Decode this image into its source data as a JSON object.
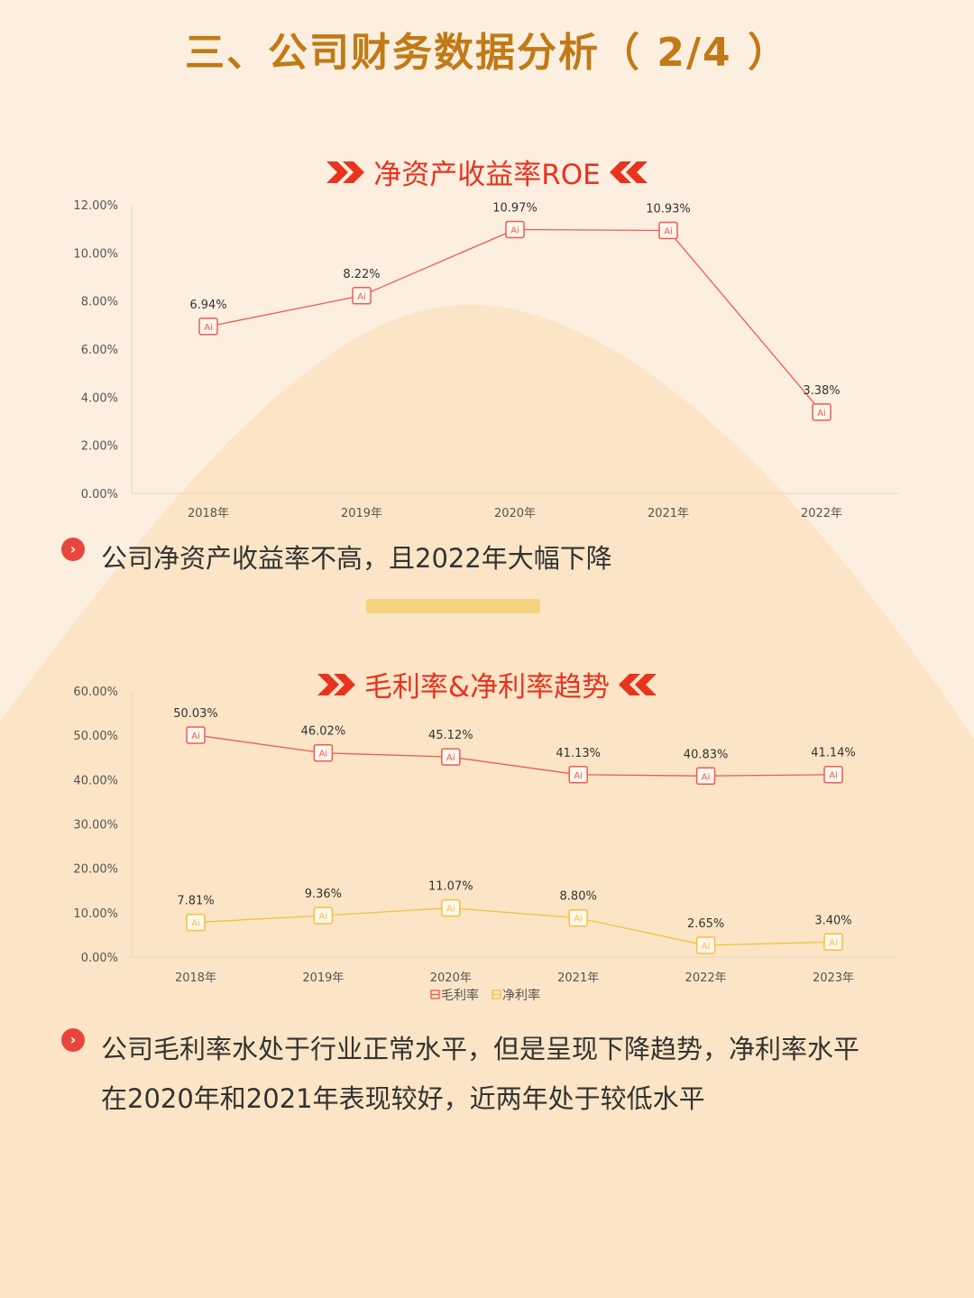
{
  "page_title": "三、公司财务数据分析（ 2/4 ）",
  "charts": [
    {
      "title": "净资产收益率ROE",
      "bullet": "公司净资产收益率不高，且2022年大幅下降"
    },
    {
      "title": "毛利率&净利率趋势",
      "bullet": "公司毛利率水处于行业正常水平，但是呈现下降趋势，净利率水平在2020年和2021年表现较好，近两年处于较低水平"
    }
  ],
  "chart_data": [
    {
      "type": "line",
      "categories": [
        "2018年",
        "2019年",
        "2020年",
        "2021年",
        "2022年"
      ],
      "series": [
        {
          "name": "",
          "values": [
            6.94,
            8.22,
            10.97,
            10.93,
            3.38
          ],
          "labels": [
            "6.94%",
            "8.22%",
            "10.97%",
            "10.93%",
            "3.38%"
          ],
          "color": "#ef5a50"
        }
      ],
      "yticks": [
        "0.00%",
        "2.00%",
        "4.00%",
        "6.00%",
        "8.00%",
        "10.00%",
        "12.00%"
      ],
      "ylim": [
        0,
        12
      ],
      "marker_text": "Ai",
      "legend": false
    },
    {
      "type": "line",
      "categories": [
        "2018年",
        "2019年",
        "2020年",
        "2021年",
        "2022年",
        "2023年"
      ],
      "series": [
        {
          "name": "毛利率",
          "values": [
            50.03,
            46.02,
            45.12,
            41.13,
            40.83,
            41.14
          ],
          "labels": [
            "50.03%",
            "46.02%",
            "45.12%",
            "41.13%",
            "40.83%",
            "41.14%"
          ],
          "color": "#ef5a50"
        },
        {
          "name": "净利率",
          "values": [
            7.81,
            9.36,
            11.07,
            8.8,
            2.65,
            3.4
          ],
          "labels": [
            "7.81%",
            "9.36%",
            "11.07%",
            "8.80%",
            "2.65%",
            "3.40%"
          ],
          "color": "#f2c23c"
        }
      ],
      "yticks": [
        "0.00%",
        "10.00%",
        "20.00%",
        "30.00%",
        "40.00%",
        "50.00%",
        "60.00%"
      ],
      "ylim": [
        0,
        60
      ],
      "marker_text": "Ai",
      "legend": "bottom"
    }
  ],
  "colors": {
    "background": "#fcefdf",
    "hill": "#fbe5c6",
    "title": "#c07a16",
    "accent": "#e8331f",
    "divider": "#f5d27e"
  }
}
